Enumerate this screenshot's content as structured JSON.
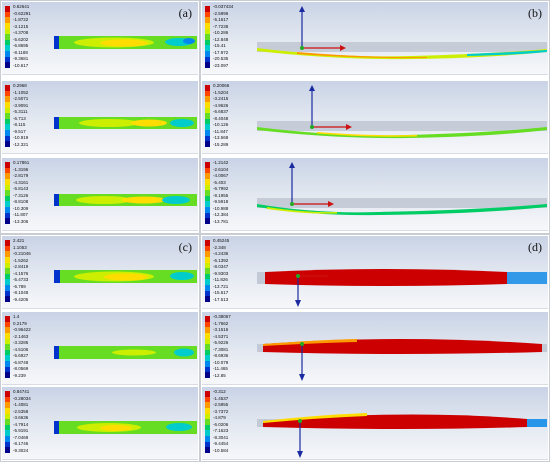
{
  "colors": {
    "scale": [
      "#cc0000",
      "#ff4400",
      "#ff9900",
      "#ffdd00",
      "#ccee00",
      "#66dd22",
      "#00cc66",
      "#00cccc",
      "#0088ee",
      "#0033cc",
      "#000088"
    ],
    "top_panel": "#c9d3e6",
    "bottom_panel": "#f6f7fa",
    "axis_y": "#1a2aa0",
    "axis_x": "#cc1111"
  },
  "panels": {
    "a": {
      "label": "(a)",
      "plots": [
        {
          "legend": [
            "0.62641",
            "-0.62291",
            "-1.8722",
            "-3.1215",
            "-4.3708",
            "-5.6202",
            "-6.8695",
            "-8.1188",
            "-9.3681",
            "-10.617"
          ]
        },
        {
          "legend": [
            "0.2968",
            "-1.1052",
            "-2.5071",
            "-3.9091",
            "-5.3111",
            "-6.713",
            "-8.115",
            "-9.517",
            "-10.919",
            "-12.321"
          ]
        },
        {
          "legend": [
            "0.17861",
            "-1.3196",
            "-2.8179",
            "-4.3161",
            "-5.8143",
            "-7.3126",
            "-8.8108",
            "-10.309",
            "-11.807",
            "-13.306"
          ]
        }
      ]
    },
    "b": {
      "label": "(b)",
      "plots": [
        {
          "legend": [
            "-0.037434",
            "-2.5996",
            "-5.1617",
            "-7.7238",
            "-10.286",
            "-12.848",
            "-15.41",
            "-17.972",
            "-20.535",
            "-23.097"
          ]
        },
        {
          "legend": [
            "0.20066",
            "-1.5204",
            "-3.2415",
            "-4.9626",
            "-6.6837",
            "-8.4048",
            "-10.126",
            "-11.847",
            "-13.568",
            "-15.289"
          ]
        },
        {
          "legend": [
            "-1.2142",
            "-2.6104",
            "-4.0067",
            "-5.403",
            "-6.7992",
            "-8.1955",
            "-9.5918",
            "-10.988",
            "-12.384",
            "-13.781"
          ]
        }
      ]
    },
    "c": {
      "label": "(c)",
      "plots": [
        {
          "legend": [
            "2.421",
            "1.1053",
            "-0.21046",
            "-1.5262",
            "-2.8419",
            "-4.1576",
            "-5.4733",
            "-6.789",
            "-8.1048",
            "-9.4205"
          ]
        },
        {
          "legend": [
            "1.4",
            "0.2179",
            "-0.96422",
            "-2.1463",
            "-3.3285",
            "-4.5106",
            "-5.6927",
            "-6.8748",
            "-8.0569",
            "-9.239"
          ]
        },
        {
          "legend": [
            "0.84741",
            "-0.28034",
            "-1.4081",
            "-2.5358",
            "-3.6636",
            "-4.7914",
            "-5.9191",
            "-7.0469",
            "-8.1746",
            "-9.3024"
          ]
        }
      ]
    },
    "d": {
      "label": "(d)",
      "plots": [
        {
          "legend": [
            "0.45245",
            "-2.348",
            "-4.2436",
            "-6.1392",
            "-8.0347",
            "-9.9303",
            "-11.826",
            "-13.721",
            "-15.617",
            "-17.513"
          ]
        },
        {
          "legend": [
            "-0.38067",
            "-1.7662",
            "-3.1516",
            "-4.5371",
            "-5.9226",
            "-7.3081",
            "-8.6936",
            "-10.079",
            "-11.465",
            "-12.85"
          ]
        },
        {
          "legend": [
            "-0.312",
            "-1.4537",
            "-2.5955",
            "-3.7372",
            "-4.879",
            "-6.0206",
            "-7.1623",
            "-8.3041",
            "-9.4454",
            "-10.584"
          ]
        }
      ]
    }
  }
}
